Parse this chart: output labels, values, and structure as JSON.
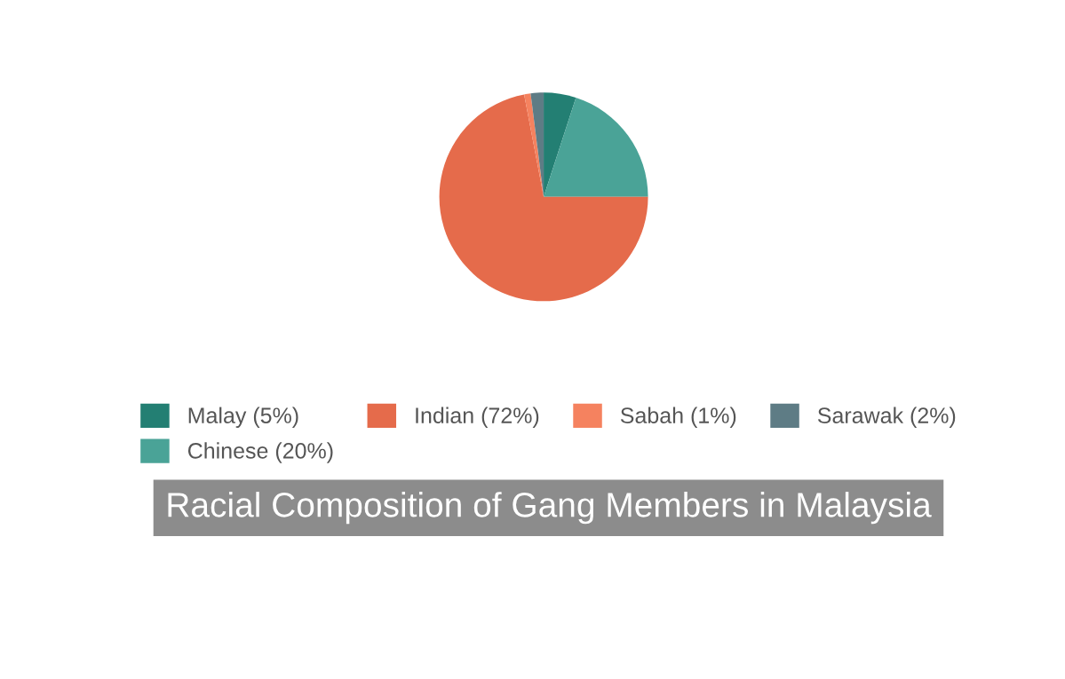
{
  "chart_data": {
    "type": "pie",
    "title": "Racial Composition of Gang Members in Malaysia",
    "categories": [
      "Malay (5%)",
      "Chinese (20%)",
      "Indian (72%)",
      "Sabah (1%)",
      "Sarawak (2%)"
    ],
    "values": [
      5,
      20,
      72,
      1,
      2
    ],
    "colors": [
      "#237f73",
      "#4aa397",
      "#e56b4b",
      "#f5825f",
      "#5e7c85"
    ],
    "legend": "bottom"
  }
}
